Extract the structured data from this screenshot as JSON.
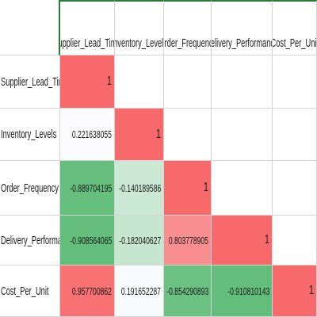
{
  "chart_data": {
    "type": "heatmap",
    "title": "",
    "xlabel": "",
    "ylabel": "",
    "x": [
      "Supplier_Lead_Time",
      "Inventory_Levels",
      "Order_Frequency",
      "Delivery_Performance",
      "Cost_Per_Unit"
    ],
    "y": [
      "Supplier_Lead_Time",
      "Inventory_Levels",
      "Order_Frequency",
      "Delivery_Performance",
      "Cost_Per_Unit"
    ],
    "values": [
      [
        1,
        null,
        null,
        null,
        null
      ],
      [
        0.221638055,
        1,
        null,
        null,
        null
      ],
      [
        -0.889704195,
        -0.140189586,
        1,
        null,
        null
      ],
      [
        -0.908564065,
        -0.182040627,
        0.803778905,
        1,
        null
      ],
      [
        0.957700862,
        0.191652287,
        -0.854290893,
        -0.910810143,
        1
      ]
    ],
    "display_values": [
      [
        "1",
        "",
        "",
        "",
        ""
      ],
      [
        "0.221638055",
        "1",
        "",
        "",
        ""
      ],
      [
        "-0.889704195",
        "-0.140189586",
        "1",
        "",
        ""
      ],
      [
        "-0.908564065",
        "-0.182040627",
        "0.803778905",
        "1",
        ""
      ],
      [
        "0.957700862",
        "0.191652287",
        "-0.854290893",
        "-0.910810143",
        "1"
      ]
    ],
    "color_scale": {
      "min": -0.91,
      "mid": 0.22,
      "max": 1,
      "min_color": "#63be7b",
      "mid_color": "#fcfcff",
      "max_color": "#f8696b"
    },
    "grid": true,
    "legend": "none"
  }
}
